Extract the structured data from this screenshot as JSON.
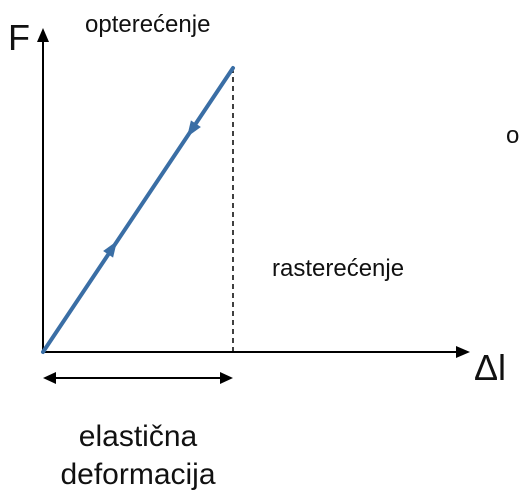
{
  "labels": {
    "force_axis": "F",
    "loading": "opterećenje",
    "cut_text": "o",
    "unloading": "rasterećenje",
    "extension_axis": "Δl",
    "region_line1": "elastična",
    "region_line2": "deformacija"
  }
}
